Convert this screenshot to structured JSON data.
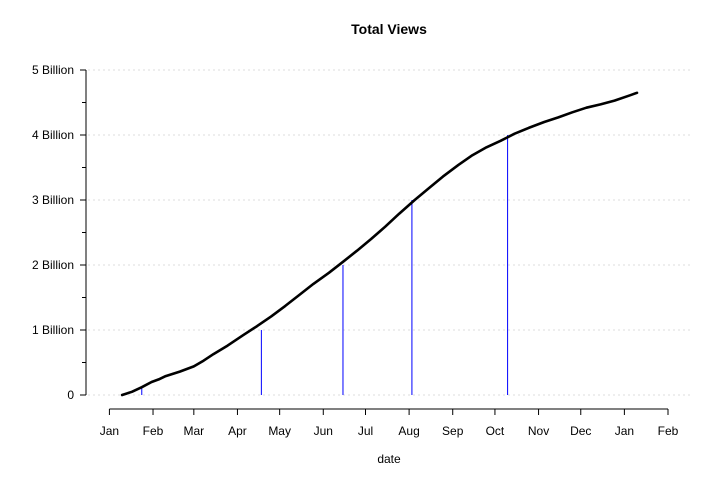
{
  "chart_data": {
    "type": "line",
    "title": "Total Views",
    "xlabel": "date",
    "ylabel": "",
    "ylim": [
      0,
      5000000000
    ],
    "xlim": [
      "2011-12-31",
      "2013-02-01"
    ],
    "grid": true,
    "legend": "none",
    "y_ticks": [
      {
        "value": 0,
        "label": "0"
      },
      {
        "value": 1000000000,
        "label": "1 Billion"
      },
      {
        "value": 2000000000,
        "label": "2 Billion"
      },
      {
        "value": 3000000000,
        "label": "3 Billion"
      },
      {
        "value": 4000000000,
        "label": "4 Billion"
      },
      {
        "value": 5000000000,
        "label": "5 Billion"
      }
    ],
    "y_minor_ticks": [
      500000000,
      1500000000,
      2500000000,
      3500000000,
      4500000000
    ],
    "x_ticks": [
      {
        "value": "2012-01-01",
        "label": "Jan"
      },
      {
        "value": "2012-02-01",
        "label": "Feb"
      },
      {
        "value": "2012-03-01",
        "label": "Mar"
      },
      {
        "value": "2012-04-01",
        "label": "Apr"
      },
      {
        "value": "2012-05-01",
        "label": "May"
      },
      {
        "value": "2012-06-01",
        "label": "Jun"
      },
      {
        "value": "2012-07-01",
        "label": "Jul"
      },
      {
        "value": "2012-08-01",
        "label": "Aug"
      },
      {
        "value": "2012-09-01",
        "label": "Sep"
      },
      {
        "value": "2012-10-01",
        "label": "Oct"
      },
      {
        "value": "2012-11-01",
        "label": "Nov"
      },
      {
        "value": "2012-12-01",
        "label": "Dec"
      },
      {
        "value": "2013-01-01",
        "label": "Jan"
      },
      {
        "value": "2013-02-01",
        "label": "Feb"
      }
    ],
    "series": [
      {
        "color": "#000000",
        "x": [
          "2012-01-10",
          "2012-01-17",
          "2012-01-24",
          "2012-01-31",
          "2012-02-05",
          "2012-02-10",
          "2012-02-20",
          "2012-03-01",
          "2012-03-08",
          "2012-03-15",
          "2012-03-25",
          "2012-04-05",
          "2012-04-15",
          "2012-04-25",
          "2012-05-05",
          "2012-05-15",
          "2012-05-25",
          "2012-06-05",
          "2012-06-15",
          "2012-06-25",
          "2012-07-05",
          "2012-07-15",
          "2012-07-25",
          "2012-08-05",
          "2012-08-15",
          "2012-08-25",
          "2012-09-05",
          "2012-09-15",
          "2012-09-25",
          "2012-10-05",
          "2012-10-15",
          "2012-10-25",
          "2012-11-05",
          "2012-11-15",
          "2012-11-25",
          "2012-12-05",
          "2012-12-15",
          "2012-12-25",
          "2013-01-05",
          "2013-01-10"
        ],
        "y": [
          0,
          50000000,
          120000000,
          200000000,
          240000000,
          290000000,
          360000000,
          440000000,
          530000000,
          630000000,
          760000000,
          920000000,
          1060000000,
          1210000000,
          1370000000,
          1540000000,
          1710000000,
          1880000000,
          2050000000,
          2220000000,
          2400000000,
          2590000000,
          2790000000,
          3000000000,
          3180000000,
          3360000000,
          3540000000,
          3690000000,
          3810000000,
          3910000000,
          4020000000,
          4110000000,
          4200000000,
          4270000000,
          4350000000,
          4420000000,
          4470000000,
          4530000000,
          4610000000,
          4650000000
        ]
      }
    ],
    "milestones": [
      {
        "x": "2012-01-24",
        "y": 100000000,
        "color": "#0000ff"
      },
      {
        "x": "2012-04-18",
        "y": 1000000000,
        "color": "#0000ff"
      },
      {
        "x": "2012-06-15",
        "y": 2000000000,
        "color": "#0000ff"
      },
      {
        "x": "2012-08-03",
        "y": 3000000000,
        "color": "#0000ff"
      },
      {
        "x": "2012-10-10",
        "y": 4000000000,
        "color": "#0000ff"
      }
    ]
  }
}
